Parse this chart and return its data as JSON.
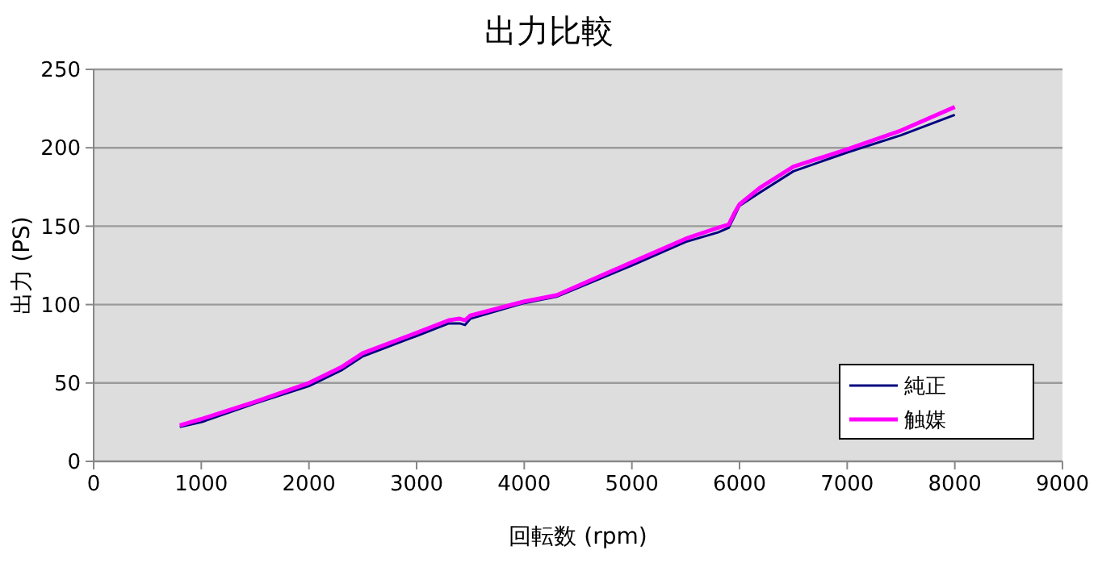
{
  "chart_data": {
    "type": "line",
    "title": "出力比較",
    "xlabel": "回転数 (rpm)",
    "ylabel": "出力 (PS)",
    "xlim": [
      0,
      9000
    ],
    "xticks": [
      0,
      1000,
      2000,
      3000,
      4000,
      5000,
      6000,
      7000,
      8000,
      9000
    ],
    "ylim": [
      0,
      250
    ],
    "yticks": [
      0,
      50,
      100,
      150,
      200,
      250
    ],
    "grid": "y",
    "legend": "bottom right",
    "marker": "none",
    "line_style": "solid",
    "series": [
      {
        "name": "純正",
        "color": "#000080",
        "x": [
          800,
          1000,
          1500,
          2000,
          2300,
          2500,
          3000,
          3300,
          3400,
          3450,
          3500,
          4000,
          4300,
          5000,
          5500,
          5800,
          5900,
          5950,
          6000,
          6200,
          6500,
          7000,
          7500,
          8000
        ],
        "values": [
          22,
          25,
          37,
          48,
          58,
          67,
          80,
          88,
          88,
          87,
          91,
          101,
          105,
          125,
          140,
          146,
          149,
          156,
          163,
          172,
          185,
          197,
          208,
          221
        ]
      },
      {
        "name": "触媒",
        "color": "#ff00ff",
        "x": [
          800,
          1000,
          1500,
          2000,
          2300,
          2500,
          3000,
          3300,
          3400,
          3450,
          3500,
          4000,
          4300,
          5000,
          5500,
          5800,
          5900,
          5950,
          6000,
          6200,
          6500,
          7000,
          7500,
          8000
        ],
        "values": [
          23,
          27,
          38,
          50,
          60,
          69,
          82,
          90,
          91,
          90,
          93,
          102,
          106,
          127,
          142,
          149,
          151,
          158,
          164,
          175,
          188,
          199,
          211,
          226
        ]
      }
    ]
  }
}
